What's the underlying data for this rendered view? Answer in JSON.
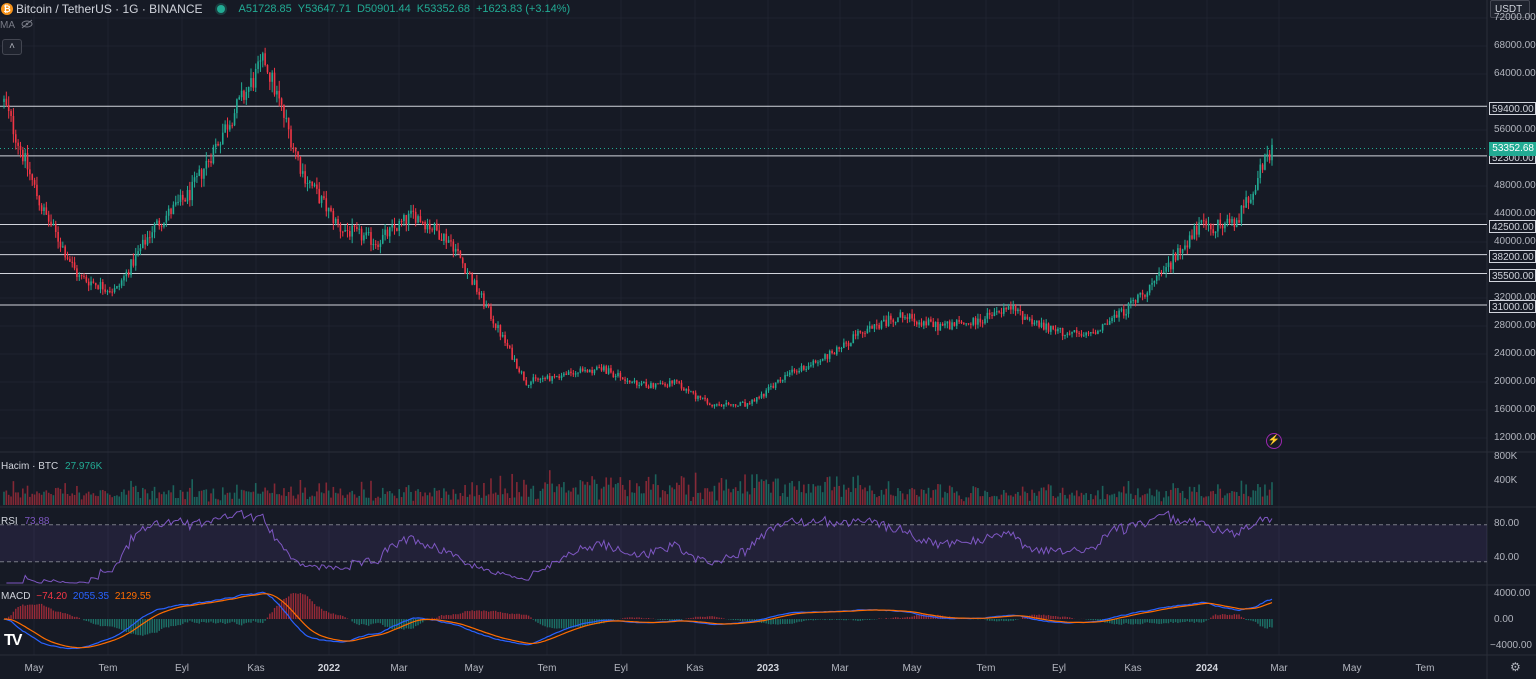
{
  "header": {
    "symbol_title": "Bitcoin / TetherUS · 1G · BINANCE",
    "open": "A51728.85",
    "high": "Y53647.71",
    "low": "D50901.44",
    "close": "K53352.68",
    "change": "+1623.83 (+3.14%)",
    "currency": "USDT",
    "ma_label": "MA",
    "collapse_icon": "chevron-up-icon",
    "coin_icon": "bitcoin-icon"
  },
  "colors": {
    "background": "#161a25",
    "up": "#22ab94",
    "down": "#f23645",
    "level_line": "#d1d4dc",
    "rsi": "#7e57c2",
    "macd_line": "#2962ff",
    "signal_line": "#ff6d00"
  },
  "price_axis": {
    "ticks": [
      "72000.00",
      "68000.00",
      "64000.00",
      "56000.00",
      "48000.00",
      "44000.00",
      "40000.00",
      "32000.00",
      "28000.00",
      "24000.00",
      "20000.00",
      "16000.00",
      "12000.00"
    ],
    "last_price": "53352.68"
  },
  "levels": [
    "59400.00",
    "52300.00",
    "42500.00",
    "38200.00",
    "35500.00",
    "31000.00"
  ],
  "volume": {
    "label": "Hacim · BTC",
    "value": "27.976K",
    "ticks": [
      "800K",
      "400K"
    ]
  },
  "rsi": {
    "label": "RSI",
    "value": "73.88",
    "ticks": [
      "80.00",
      "40.00"
    ]
  },
  "macd": {
    "label": "MACD",
    "hist": "−74.20",
    "macd": "2055.35",
    "signal": "2129.55",
    "ticks": [
      "4000.00",
      "0.00",
      "−4000.00"
    ]
  },
  "time_axis": {
    "labels": [
      "May",
      "Tem",
      "Eyl",
      "Kas",
      "2022",
      "Mar",
      "May",
      "Tem",
      "Eyl",
      "Kas",
      "2023",
      "Mar",
      "May",
      "Tem",
      "Eyl",
      "Kas",
      "2024",
      "Mar",
      "May",
      "Tem"
    ]
  },
  "chart_data": {
    "type": "line",
    "title": "Bitcoin / TetherUS · 1G · BINANCE",
    "x": [
      "2021-04",
      "2021-05",
      "2021-06",
      "2021-07",
      "2021-08",
      "2021-09",
      "2021-10",
      "2021-11",
      "2021-12",
      "2022-01",
      "2022-02",
      "2022-03",
      "2022-04",
      "2022-05",
      "2022-06",
      "2022-07",
      "2022-08",
      "2022-09",
      "2022-10",
      "2022-11",
      "2022-12",
      "2023-01",
      "2023-02",
      "2023-03",
      "2023-04",
      "2023-05",
      "2023-06",
      "2023-07",
      "2023-08",
      "2023-09",
      "2023-10",
      "2023-11",
      "2023-12",
      "2024-01",
      "2024-02"
    ],
    "series": [
      {
        "values": [
          60000,
          45000,
          35000,
          33000,
          42000,
          47000,
          57000,
          66000,
          50000,
          42000,
          40000,
          44000,
          40000,
          30000,
          20000,
          21000,
          22000,
          19500,
          19800,
          16500,
          16800,
          21000,
          23500,
          27000,
          29500,
          28000,
          28500,
          30500,
          27500,
          26500,
          30000,
          35000,
          42000,
          42500,
          53352.68
        ]
      }
    ],
    "ylim": [
      10000,
      74000
    ],
    "levels": [
      59400,
      52300,
      42500,
      38200,
      35500,
      31000
    ],
    "rsi_last": 73.88,
    "macd_last": {
      "hist": -74.2,
      "macd": 2055.35,
      "signal": 2129.55
    }
  }
}
